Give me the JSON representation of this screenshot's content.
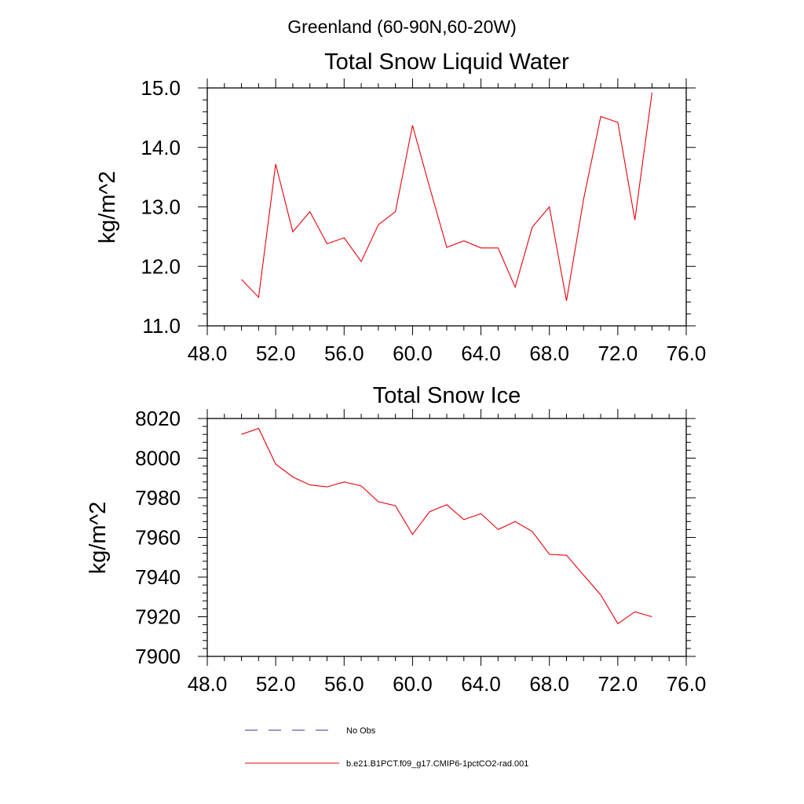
{
  "page": {
    "suptitle": "Greenland (60-90N,60-20W)"
  },
  "colors": {
    "series": "#e8000b",
    "obs": "#2b3a8c",
    "axes": "#000000",
    "background": "#ffffff"
  },
  "legend": {
    "placement": "bottom",
    "entries": [
      {
        "label": "No Obs",
        "color": "#2b3a8c",
        "style": "dashed"
      },
      {
        "label": "b.e21.B1PCT.f09_g17.CMIP6-1pctCO2-rad.001",
        "color": "#e8000b",
        "style": "solid"
      }
    ]
  },
  "chart_data": [
    {
      "type": "line",
      "title": "Total Snow Liquid Water",
      "xlabel": "",
      "ylabel": "kg/m^2",
      "xlim": [
        48,
        76
      ],
      "ylim": [
        11,
        15
      ],
      "xticks": [
        "48.0",
        "52.0",
        "56.0",
        "60.0",
        "64.0",
        "68.0",
        "72.0",
        "76.0"
      ],
      "yticks": [
        "11.0",
        "12.0",
        "13.0",
        "14.0",
        "15.0"
      ],
      "grid": false,
      "series": [
        {
          "name": "b.e21.B1PCT.f09_g17.CMIP6-1pctCO2-rad.001",
          "x": [
            50,
            51,
            52,
            53,
            54,
            55,
            56,
            57,
            58,
            59,
            60,
            61,
            62,
            63,
            64,
            65,
            66,
            67,
            68,
            69,
            70,
            71,
            72,
            73,
            74
          ],
          "y": [
            11.78,
            11.48,
            13.72,
            12.58,
            12.92,
            12.38,
            12.48,
            12.08,
            12.7,
            12.92,
            14.37,
            13.33,
            12.32,
            12.43,
            12.31,
            12.31,
            11.65,
            12.66,
            13.0,
            11.42,
            13.13,
            14.52,
            14.42,
            12.78,
            14.92
          ]
        }
      ]
    },
    {
      "type": "line",
      "title": "Total Snow Ice",
      "xlabel": "",
      "ylabel": "kg/m^2",
      "xlim": [
        48,
        76
      ],
      "ylim": [
        7900,
        8020
      ],
      "xticks": [
        "48.0",
        "52.0",
        "56.0",
        "60.0",
        "64.0",
        "68.0",
        "72.0",
        "76.0"
      ],
      "yticks": [
        "7900",
        "7920",
        "7940",
        "7960",
        "7980",
        "8000",
        "8020"
      ],
      "grid": false,
      "series": [
        {
          "name": "b.e21.B1PCT.f09_g17.CMIP6-1pctCO2-rad.001",
          "x": [
            50,
            51,
            52,
            53,
            54,
            55,
            56,
            57,
            58,
            59,
            60,
            61,
            62,
            63,
            64,
            65,
            66,
            67,
            68,
            69,
            70,
            71,
            72,
            73,
            74
          ],
          "y": [
            8012,
            8015,
            7997,
            7990.5,
            7986.5,
            7985.5,
            7988,
            7986,
            7978,
            7976,
            7961.5,
            7973,
            7976.5,
            7969,
            7972,
            7964,
            7968,
            7963,
            7951.5,
            7951,
            7941,
            7931,
            7916.5,
            7922.5,
            7920
          ]
        }
      ]
    }
  ]
}
